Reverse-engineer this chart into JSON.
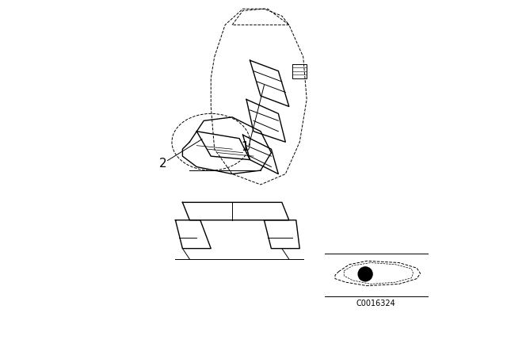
{
  "background_color": "#ffffff",
  "part_code": "C0016324",
  "line_color": "#000000",
  "fig_width": 6.4,
  "fig_height": 4.48,
  "dpi": 100
}
